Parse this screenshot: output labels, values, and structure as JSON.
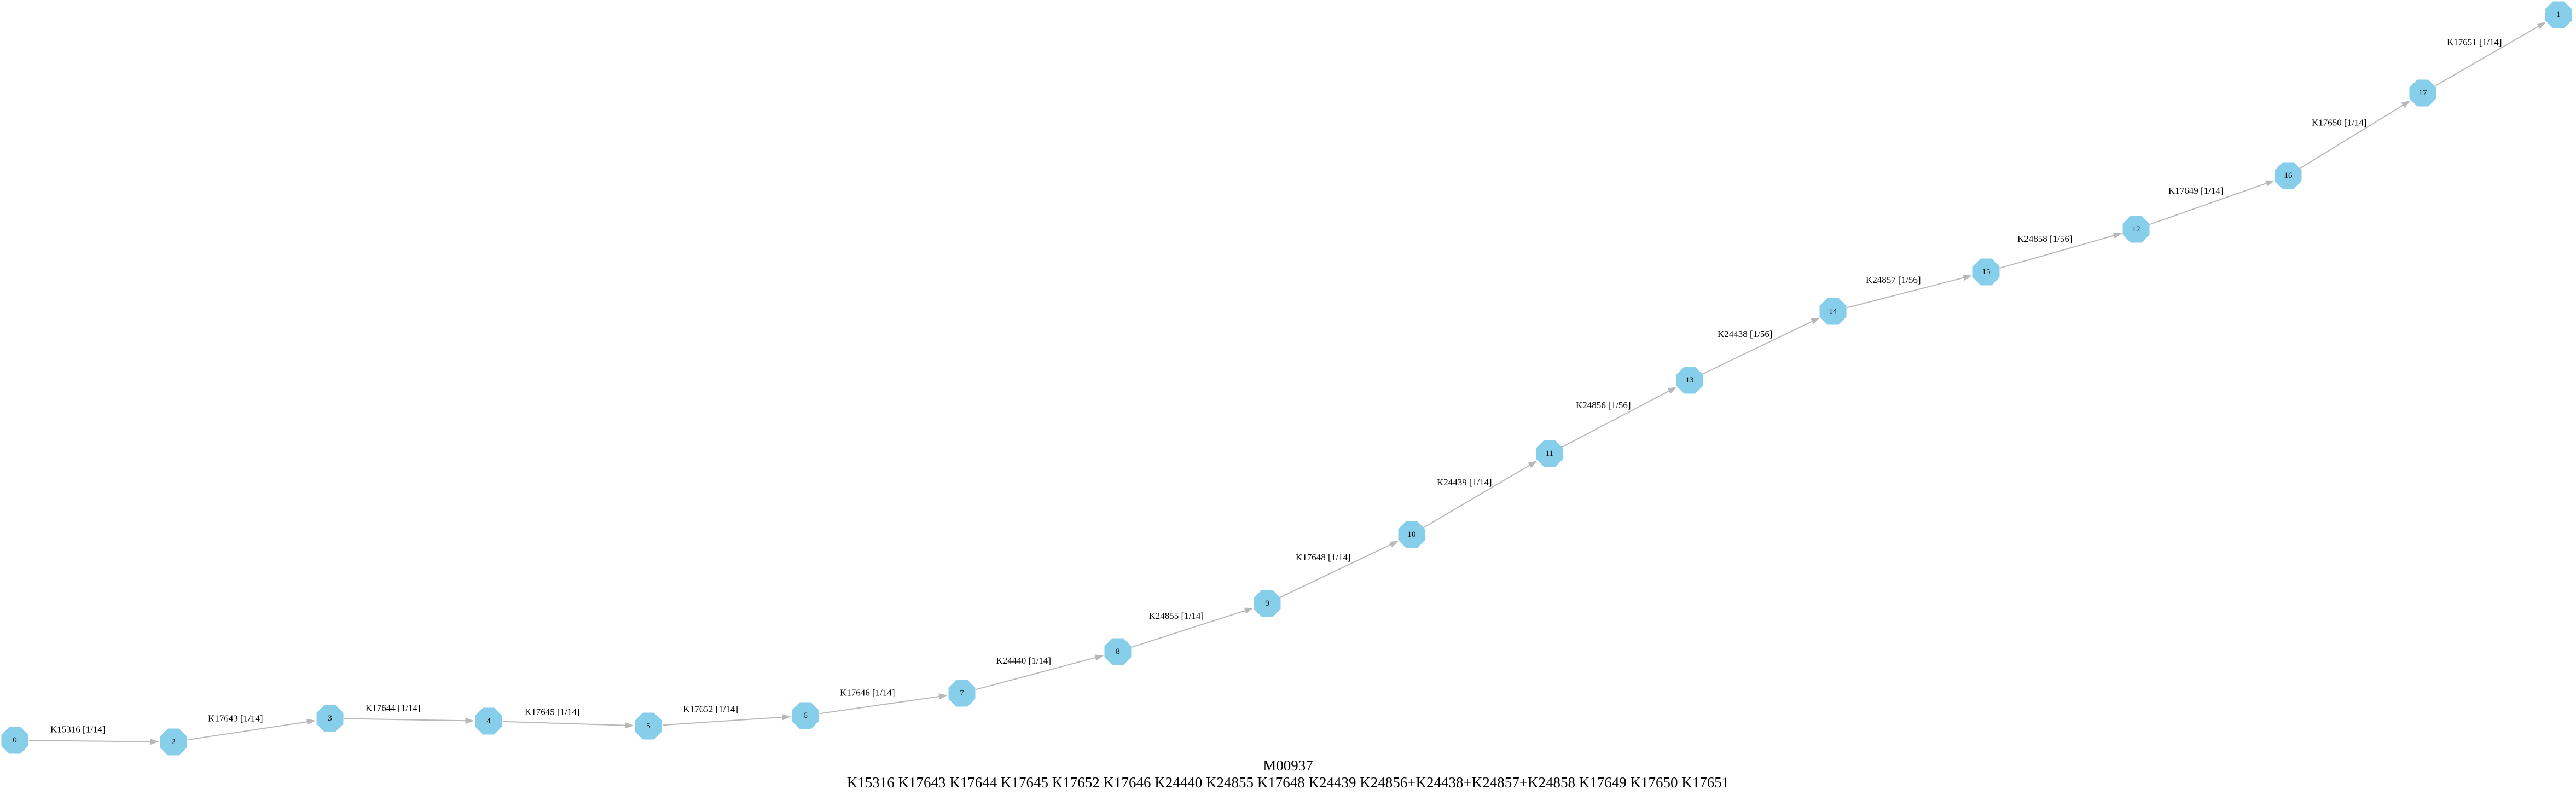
{
  "colors": {
    "node_fill": "#87ceeb",
    "edge": "#b8b8b8",
    "text": "#000000",
    "background": "#ffffff"
  },
  "nodes": [
    {
      "id": "0",
      "label": "0"
    },
    {
      "id": "2",
      "label": "2"
    },
    {
      "id": "3",
      "label": "3"
    },
    {
      "id": "4",
      "label": "4"
    },
    {
      "id": "5",
      "label": "5"
    },
    {
      "id": "6",
      "label": "6"
    },
    {
      "id": "7",
      "label": "7"
    },
    {
      "id": "8",
      "label": "8"
    },
    {
      "id": "9",
      "label": "9"
    },
    {
      "id": "10",
      "label": "10"
    },
    {
      "id": "11",
      "label": "11"
    },
    {
      "id": "13",
      "label": "13"
    },
    {
      "id": "14",
      "label": "14"
    },
    {
      "id": "15",
      "label": "15"
    },
    {
      "id": "12",
      "label": "12"
    },
    {
      "id": "16",
      "label": "16"
    },
    {
      "id": "17",
      "label": "17"
    },
    {
      "id": "1",
      "label": "1"
    }
  ],
  "edges": [
    {
      "from": "0",
      "to": "2",
      "label": "K15316 [1/14]"
    },
    {
      "from": "2",
      "to": "3",
      "label": "K17643 [1/14]"
    },
    {
      "from": "3",
      "to": "4",
      "label": "K17644 [1/14]"
    },
    {
      "from": "4",
      "to": "5",
      "label": "K17645 [1/14]"
    },
    {
      "from": "5",
      "to": "6",
      "label": "K17652 [1/14]"
    },
    {
      "from": "6",
      "to": "7",
      "label": "K17646 [1/14]"
    },
    {
      "from": "7",
      "to": "8",
      "label": "K24440 [1/14]"
    },
    {
      "from": "8",
      "to": "9",
      "label": "K24855 [1/14]"
    },
    {
      "from": "9",
      "to": "10",
      "label": "K17648 [1/14]"
    },
    {
      "from": "10",
      "to": "11",
      "label": "K24439 [1/14]"
    },
    {
      "from": "11",
      "to": "13",
      "label": "K24856 [1/56]"
    },
    {
      "from": "13",
      "to": "14",
      "label": "K24438 [1/56]"
    },
    {
      "from": "14",
      "to": "15",
      "label": "K24857 [1/56]"
    },
    {
      "from": "15",
      "to": "12",
      "label": "K24858 [1/56]"
    },
    {
      "from": "12",
      "to": "16",
      "label": "K17649 [1/14]"
    },
    {
      "from": "16",
      "to": "17",
      "label": "K17650 [1/14]"
    },
    {
      "from": "17",
      "to": "1",
      "label": "K17651 [1/14]"
    }
  ],
  "caption": {
    "title": "M00937",
    "subtitle": "K15316 K17643 K17644 K17645 K17652 K17646 K24440 K24855 K17648 K24439 K24856+K24438+K24857+K24858 K17649 K17650 K17651"
  }
}
